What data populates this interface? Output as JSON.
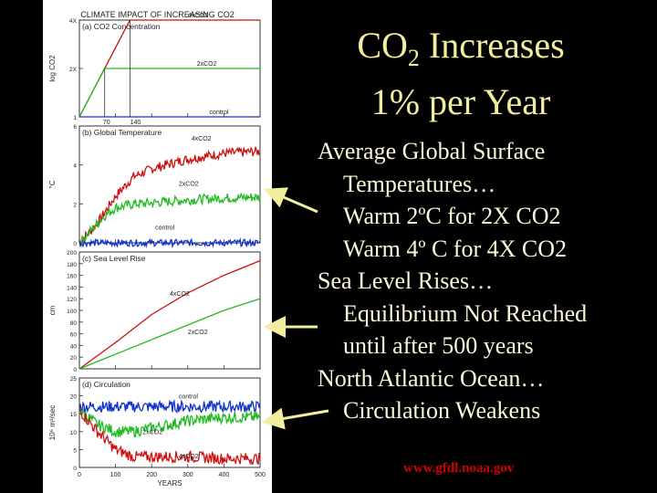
{
  "slide": {
    "title_main": "CO",
    "title_sub": "2",
    "title_rest": " Increases",
    "title_line2": "1% per Year",
    "bullets": [
      {
        "level": 1,
        "text": "Average Global Surface"
      },
      {
        "level": 2,
        "text": "Temperatures…"
      },
      {
        "level": 2,
        "text": "Warm 2ºC for 2X CO2"
      },
      {
        "level": 2,
        "text": "Warm 4º C for 4X CO2"
      },
      {
        "level": 1,
        "text": "Sea Level Rises…"
      },
      {
        "level": 2,
        "text": "Equilibrium Not Reached"
      },
      {
        "level": 2,
        "text": "until after 500 years"
      },
      {
        "level": 1,
        "text": "North Atlantic Ocean…"
      },
      {
        "level": 2,
        "text": "Circulation Weakens"
      }
    ],
    "credit": "www.gfdl.noaa.gov"
  },
  "chart_data": {
    "title": "CLIMATE IMPACT OF INCREASING CO2",
    "xlabel": "YEARS",
    "x_ticks": [
      0,
      100,
      200,
      300,
      400,
      500
    ],
    "xlim": [
      0,
      500
    ],
    "colors": {
      "4xCO2": "#cc1111",
      "2xCO2": "#22bb22",
      "control": "#1133cc"
    },
    "panels": [
      {
        "type": "line",
        "title": "(a) CO2 Concentration",
        "ylabel": "log CO2",
        "y_ticks": [
          "4X",
          "2X",
          "1"
        ],
        "ylim": [
          0,
          2
        ],
        "annotations": [
          "70",
          "140"
        ],
        "series": [
          {
            "name": "4xCO2",
            "label": "4xCO2",
            "x": [
              0,
              140,
              500
            ],
            "y": [
              0,
              2,
              2
            ]
          },
          {
            "name": "2xCO2",
            "label": "2xCO2",
            "x": [
              0,
              70,
              500
            ],
            "y": [
              0,
              1,
              1
            ]
          },
          {
            "name": "control",
            "label": "control",
            "x": [
              0,
              500
            ],
            "y": [
              0,
              0
            ]
          }
        ]
      },
      {
        "type": "line",
        "title": "(b) Global Temperature",
        "ylabel": "°C",
        "y_ticks": [
          "6",
          "4",
          "2",
          "0"
        ],
        "ylim": [
          0,
          6
        ],
        "series": [
          {
            "name": "4xCO2",
            "label": "4xCO2",
            "x": [
              0,
              50,
              100,
              150,
              200,
              300,
              400,
              500
            ],
            "y": [
              0,
              1.0,
              2.4,
              3.4,
              3.8,
              4.3,
              4.6,
              4.7
            ]
          },
          {
            "name": "2xCO2",
            "label": "2xCO2",
            "x": [
              0,
              50,
              70,
              100,
              150,
              200,
              300,
              400,
              500
            ],
            "y": [
              0,
              1.0,
              1.4,
              1.8,
              2.0,
              2.05,
              2.2,
              2.3,
              2.35
            ]
          },
          {
            "name": "control",
            "label": "control",
            "x": [
              0,
              100,
              200,
              300,
              400,
              500
            ],
            "y": [
              0,
              0,
              0,
              0,
              0,
              0
            ]
          }
        ]
      },
      {
        "type": "line",
        "title": "(c) Sea Level Rise",
        "ylabel": "cm",
        "y_ticks": [
          "200",
          "180",
          "160",
          "140",
          "120",
          "100",
          "80",
          "60",
          "40",
          "20",
          "0"
        ],
        "ylim": [
          0,
          200
        ],
        "series": [
          {
            "name": "4xCO2",
            "label": "4xCO2",
            "x": [
              0,
              100,
              200,
              300,
              400,
              500
            ],
            "y": [
              0,
              45,
              93,
              130,
              160,
              185
            ]
          },
          {
            "name": "2xCO2",
            "label": "2xCO2",
            "x": [
              0,
              100,
              200,
              300,
              400,
              500
            ],
            "y": [
              0,
              25,
              50,
              75,
              100,
              120
            ]
          }
        ]
      },
      {
        "type": "line",
        "title": "(d) Circulation",
        "ylabel": "10⁶ m³/sec",
        "y_ticks": [
          "25",
          "20",
          "15",
          "10",
          "5",
          "0"
        ],
        "ylim": [
          0,
          25
        ],
        "series": [
          {
            "name": "control",
            "label": "control",
            "x": [
              0,
              100,
              200,
              300,
              400,
              500
            ],
            "y": [
              17,
              17,
              17,
              17,
              17,
              17
            ]
          },
          {
            "name": "2xCO2",
            "label": "2xCO2",
            "x": [
              0,
              50,
              100,
              150,
              200,
              300,
              400,
              500
            ],
            "y": [
              16,
              12,
              10,
              10,
              11,
              13,
              14,
              14
            ]
          },
          {
            "name": "4xCO2",
            "label": "4xCO2",
            "x": [
              0,
              50,
              100,
              150,
              200,
              300,
              400,
              500
            ],
            "y": [
              16,
              10,
              5,
              3,
              3,
              3,
              2.5,
              2.5
            ]
          }
        ]
      }
    ]
  }
}
